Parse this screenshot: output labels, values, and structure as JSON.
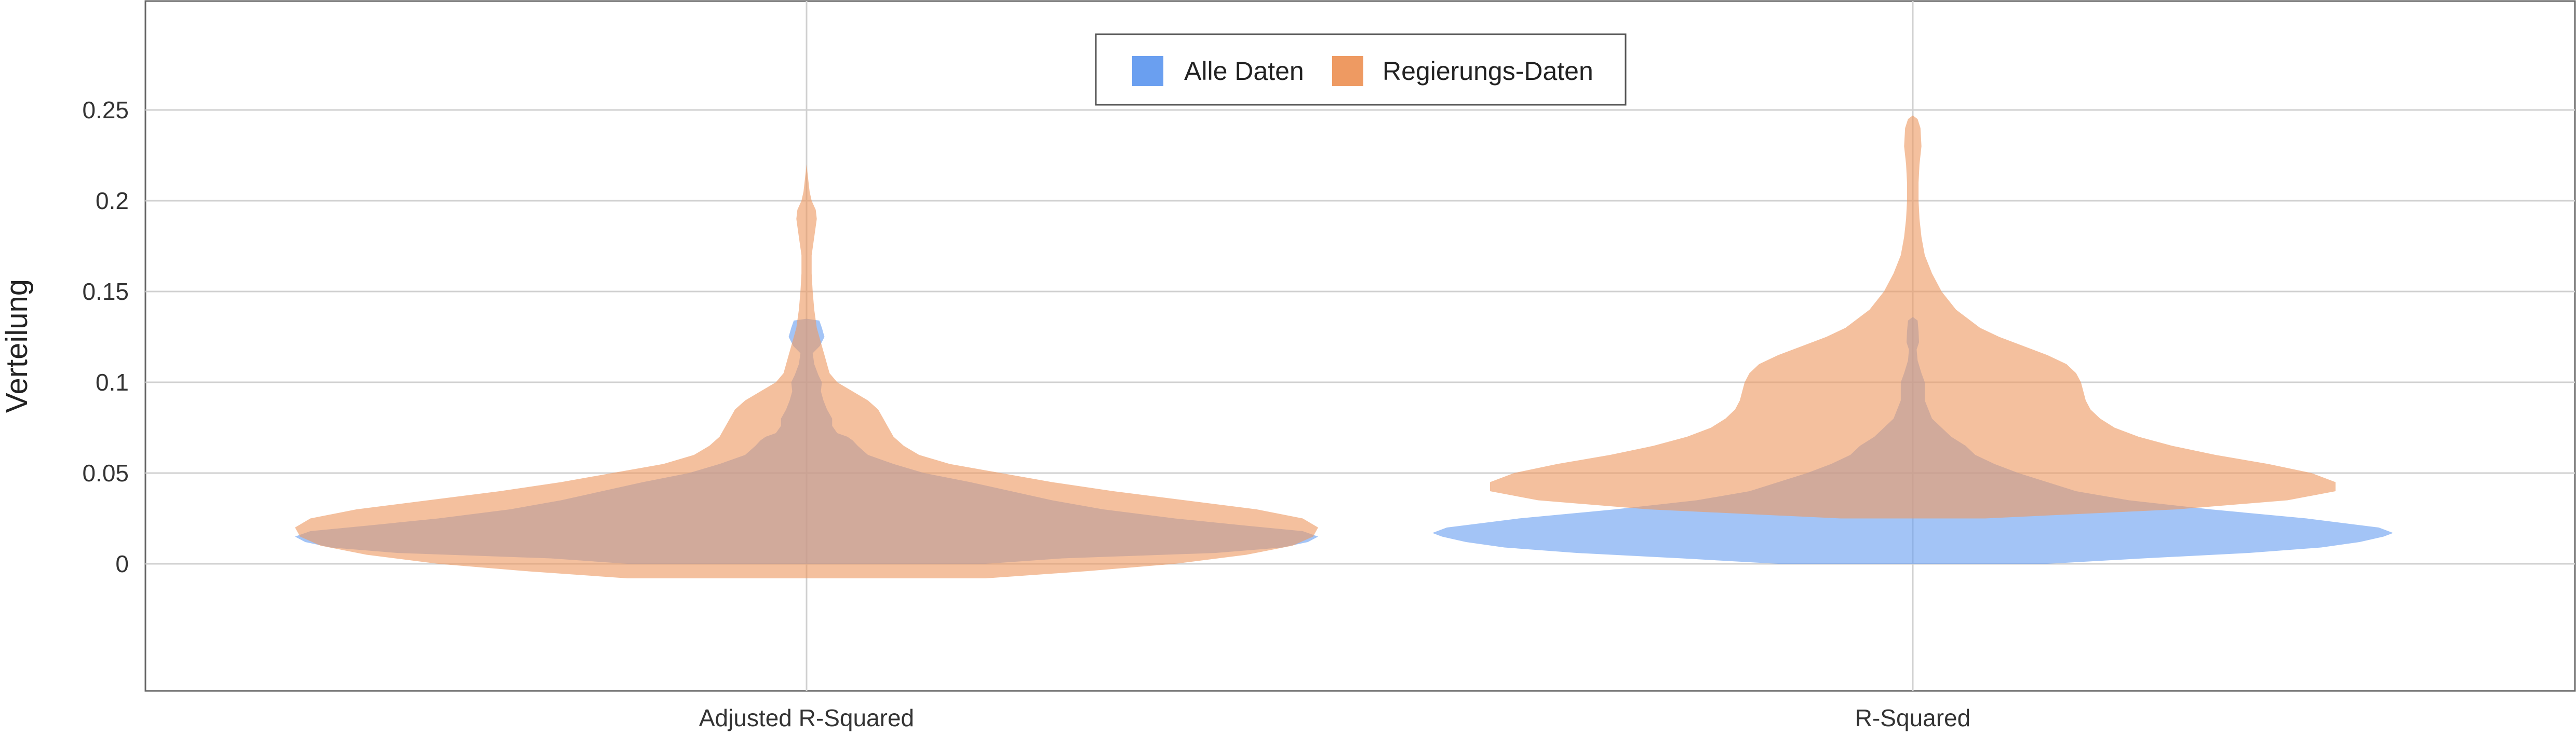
{
  "chart_data": {
    "type": "violin",
    "ylabel": "Verteilung",
    "xlabel": "",
    "ylim": [
      -0.07,
      0.31
    ],
    "yticks": [
      0,
      0.05,
      0.1,
      0.15,
      0.2,
      0.25
    ],
    "ytick_labels": [
      "0",
      "0.05",
      "0.1",
      "0.15",
      "0.2",
      "0.25"
    ],
    "categories": [
      "Adjusted R-Squared",
      "R-Squared"
    ],
    "grid": true,
    "legend_position": "top-center",
    "series": [
      {
        "name": "Alle Daten",
        "color": "#6a9ff0",
        "violins": [
          {
            "category": "Adjusted R-Squared",
            "profile": [
              [
                0.0,
                0.35
              ],
              [
                0.003,
                0.5
              ],
              [
                0.006,
                0.8
              ],
              [
                0.009,
                0.93
              ],
              [
                0.012,
                0.98
              ],
              [
                0.015,
                1.0
              ],
              [
                0.018,
                0.97
              ],
              [
                0.021,
                0.86
              ],
              [
                0.025,
                0.72
              ],
              [
                0.03,
                0.58
              ],
              [
                0.035,
                0.48
              ],
              [
                0.04,
                0.4
              ],
              [
                0.045,
                0.32
              ],
              [
                0.05,
                0.23
              ],
              [
                0.055,
                0.17
              ],
              [
                0.06,
                0.12
              ],
              [
                0.065,
                0.1
              ],
              [
                0.068,
                0.09
              ],
              [
                0.07,
                0.08
              ],
              [
                0.072,
                0.06
              ],
              [
                0.076,
                0.05
              ],
              [
                0.08,
                0.05
              ],
              [
                0.085,
                0.04
              ],
              [
                0.09,
                0.033
              ],
              [
                0.095,
                0.028
              ],
              [
                0.1,
                0.03
              ],
              [
                0.104,
                0.023
              ],
              [
                0.11,
                0.015
              ],
              [
                0.116,
                0.012
              ],
              [
                0.12,
                0.026
              ],
              [
                0.125,
                0.035
              ],
              [
                0.13,
                0.03
              ],
              [
                0.134,
                0.025
              ],
              [
                0.135,
                0.0
              ]
            ]
          },
          {
            "category": "R-Squared",
            "profile": [
              [
                0.0,
                0.28
              ],
              [
                0.003,
                0.48
              ],
              [
                0.006,
                0.7
              ],
              [
                0.009,
                0.85
              ],
              [
                0.012,
                0.93
              ],
              [
                0.015,
                0.98
              ],
              [
                0.017,
                1.0
              ],
              [
                0.02,
                0.97
              ],
              [
                0.025,
                0.82
              ],
              [
                0.03,
                0.62
              ],
              [
                0.035,
                0.45
              ],
              [
                0.04,
                0.34
              ],
              [
                0.045,
                0.28
              ],
              [
                0.05,
                0.22
              ],
              [
                0.055,
                0.17
              ],
              [
                0.06,
                0.13
              ],
              [
                0.065,
                0.11
              ],
              [
                0.07,
                0.08
              ],
              [
                0.075,
                0.06
              ],
              [
                0.08,
                0.04
              ],
              [
                0.09,
                0.025
              ],
              [
                0.1,
                0.025
              ],
              [
                0.105,
                0.018
              ],
              [
                0.112,
                0.01
              ],
              [
                0.118,
                0.008
              ],
              [
                0.122,
                0.013
              ],
              [
                0.128,
                0.012
              ],
              [
                0.134,
                0.01
              ],
              [
                0.136,
                0.0
              ]
            ]
          }
        ]
      },
      {
        "name": "Regierungs-Daten",
        "color": "#ee9a62",
        "violins": [
          {
            "category": "Adjusted R-Squared",
            "profile": [
              [
                -0.008,
                0.35
              ],
              [
                -0.004,
                0.55
              ],
              [
                0.0,
                0.72
              ],
              [
                0.005,
                0.86
              ],
              [
                0.01,
                0.95
              ],
              [
                0.015,
                0.99
              ],
              [
                0.02,
                1.0
              ],
              [
                0.025,
                0.97
              ],
              [
                0.03,
                0.88
              ],
              [
                0.035,
                0.74
              ],
              [
                0.04,
                0.6
              ],
              [
                0.045,
                0.48
              ],
              [
                0.05,
                0.38
              ],
              [
                0.055,
                0.28
              ],
              [
                0.06,
                0.22
              ],
              [
                0.065,
                0.19
              ],
              [
                0.07,
                0.17
              ],
              [
                0.075,
                0.16
              ],
              [
                0.08,
                0.15
              ],
              [
                0.085,
                0.14
              ],
              [
                0.09,
                0.12
              ],
              [
                0.095,
                0.09
              ],
              [
                0.1,
                0.06
              ],
              [
                0.105,
                0.045
              ],
              [
                0.11,
                0.04
              ],
              [
                0.115,
                0.035
              ],
              [
                0.12,
                0.03
              ],
              [
                0.125,
                0.025
              ],
              [
                0.13,
                0.02
              ],
              [
                0.14,
                0.015
              ],
              [
                0.15,
                0.012
              ],
              [
                0.16,
                0.01
              ],
              [
                0.17,
                0.01
              ],
              [
                0.18,
                0.015
              ],
              [
                0.19,
                0.02
              ],
              [
                0.195,
                0.018
              ],
              [
                0.2,
                0.01
              ],
              [
                0.205,
                0.006
              ],
              [
                0.21,
                0.004
              ],
              [
                0.22,
                0.0
              ]
            ]
          },
          {
            "category": "R-Squared",
            "profile": [
              [
                0.025,
                0.15
              ],
              [
                0.03,
                0.55
              ],
              [
                0.035,
                0.78
              ],
              [
                0.04,
                0.88
              ],
              [
                0.045,
                0.88
              ],
              [
                0.05,
                0.83
              ],
              [
                0.055,
                0.74
              ],
              [
                0.06,
                0.63
              ],
              [
                0.065,
                0.54
              ],
              [
                0.07,
                0.47
              ],
              [
                0.075,
                0.42
              ],
              [
                0.08,
                0.39
              ],
              [
                0.085,
                0.37
              ],
              [
                0.09,
                0.36
              ],
              [
                0.095,
                0.355
              ],
              [
                0.1,
                0.35
              ],
              [
                0.105,
                0.34
              ],
              [
                0.11,
                0.32
              ],
              [
                0.115,
                0.28
              ],
              [
                0.12,
                0.23
              ],
              [
                0.125,
                0.18
              ],
              [
                0.13,
                0.14
              ],
              [
                0.14,
                0.09
              ],
              [
                0.15,
                0.06
              ],
              [
                0.16,
                0.04
              ],
              [
                0.17,
                0.025
              ],
              [
                0.18,
                0.018
              ],
              [
                0.19,
                0.014
              ],
              [
                0.2,
                0.012
              ],
              [
                0.21,
                0.012
              ],
              [
                0.22,
                0.014
              ],
              [
                0.23,
                0.018
              ],
              [
                0.24,
                0.016
              ],
              [
                0.245,
                0.01
              ],
              [
                0.247,
                0.0
              ]
            ]
          }
        ]
      }
    ]
  }
}
